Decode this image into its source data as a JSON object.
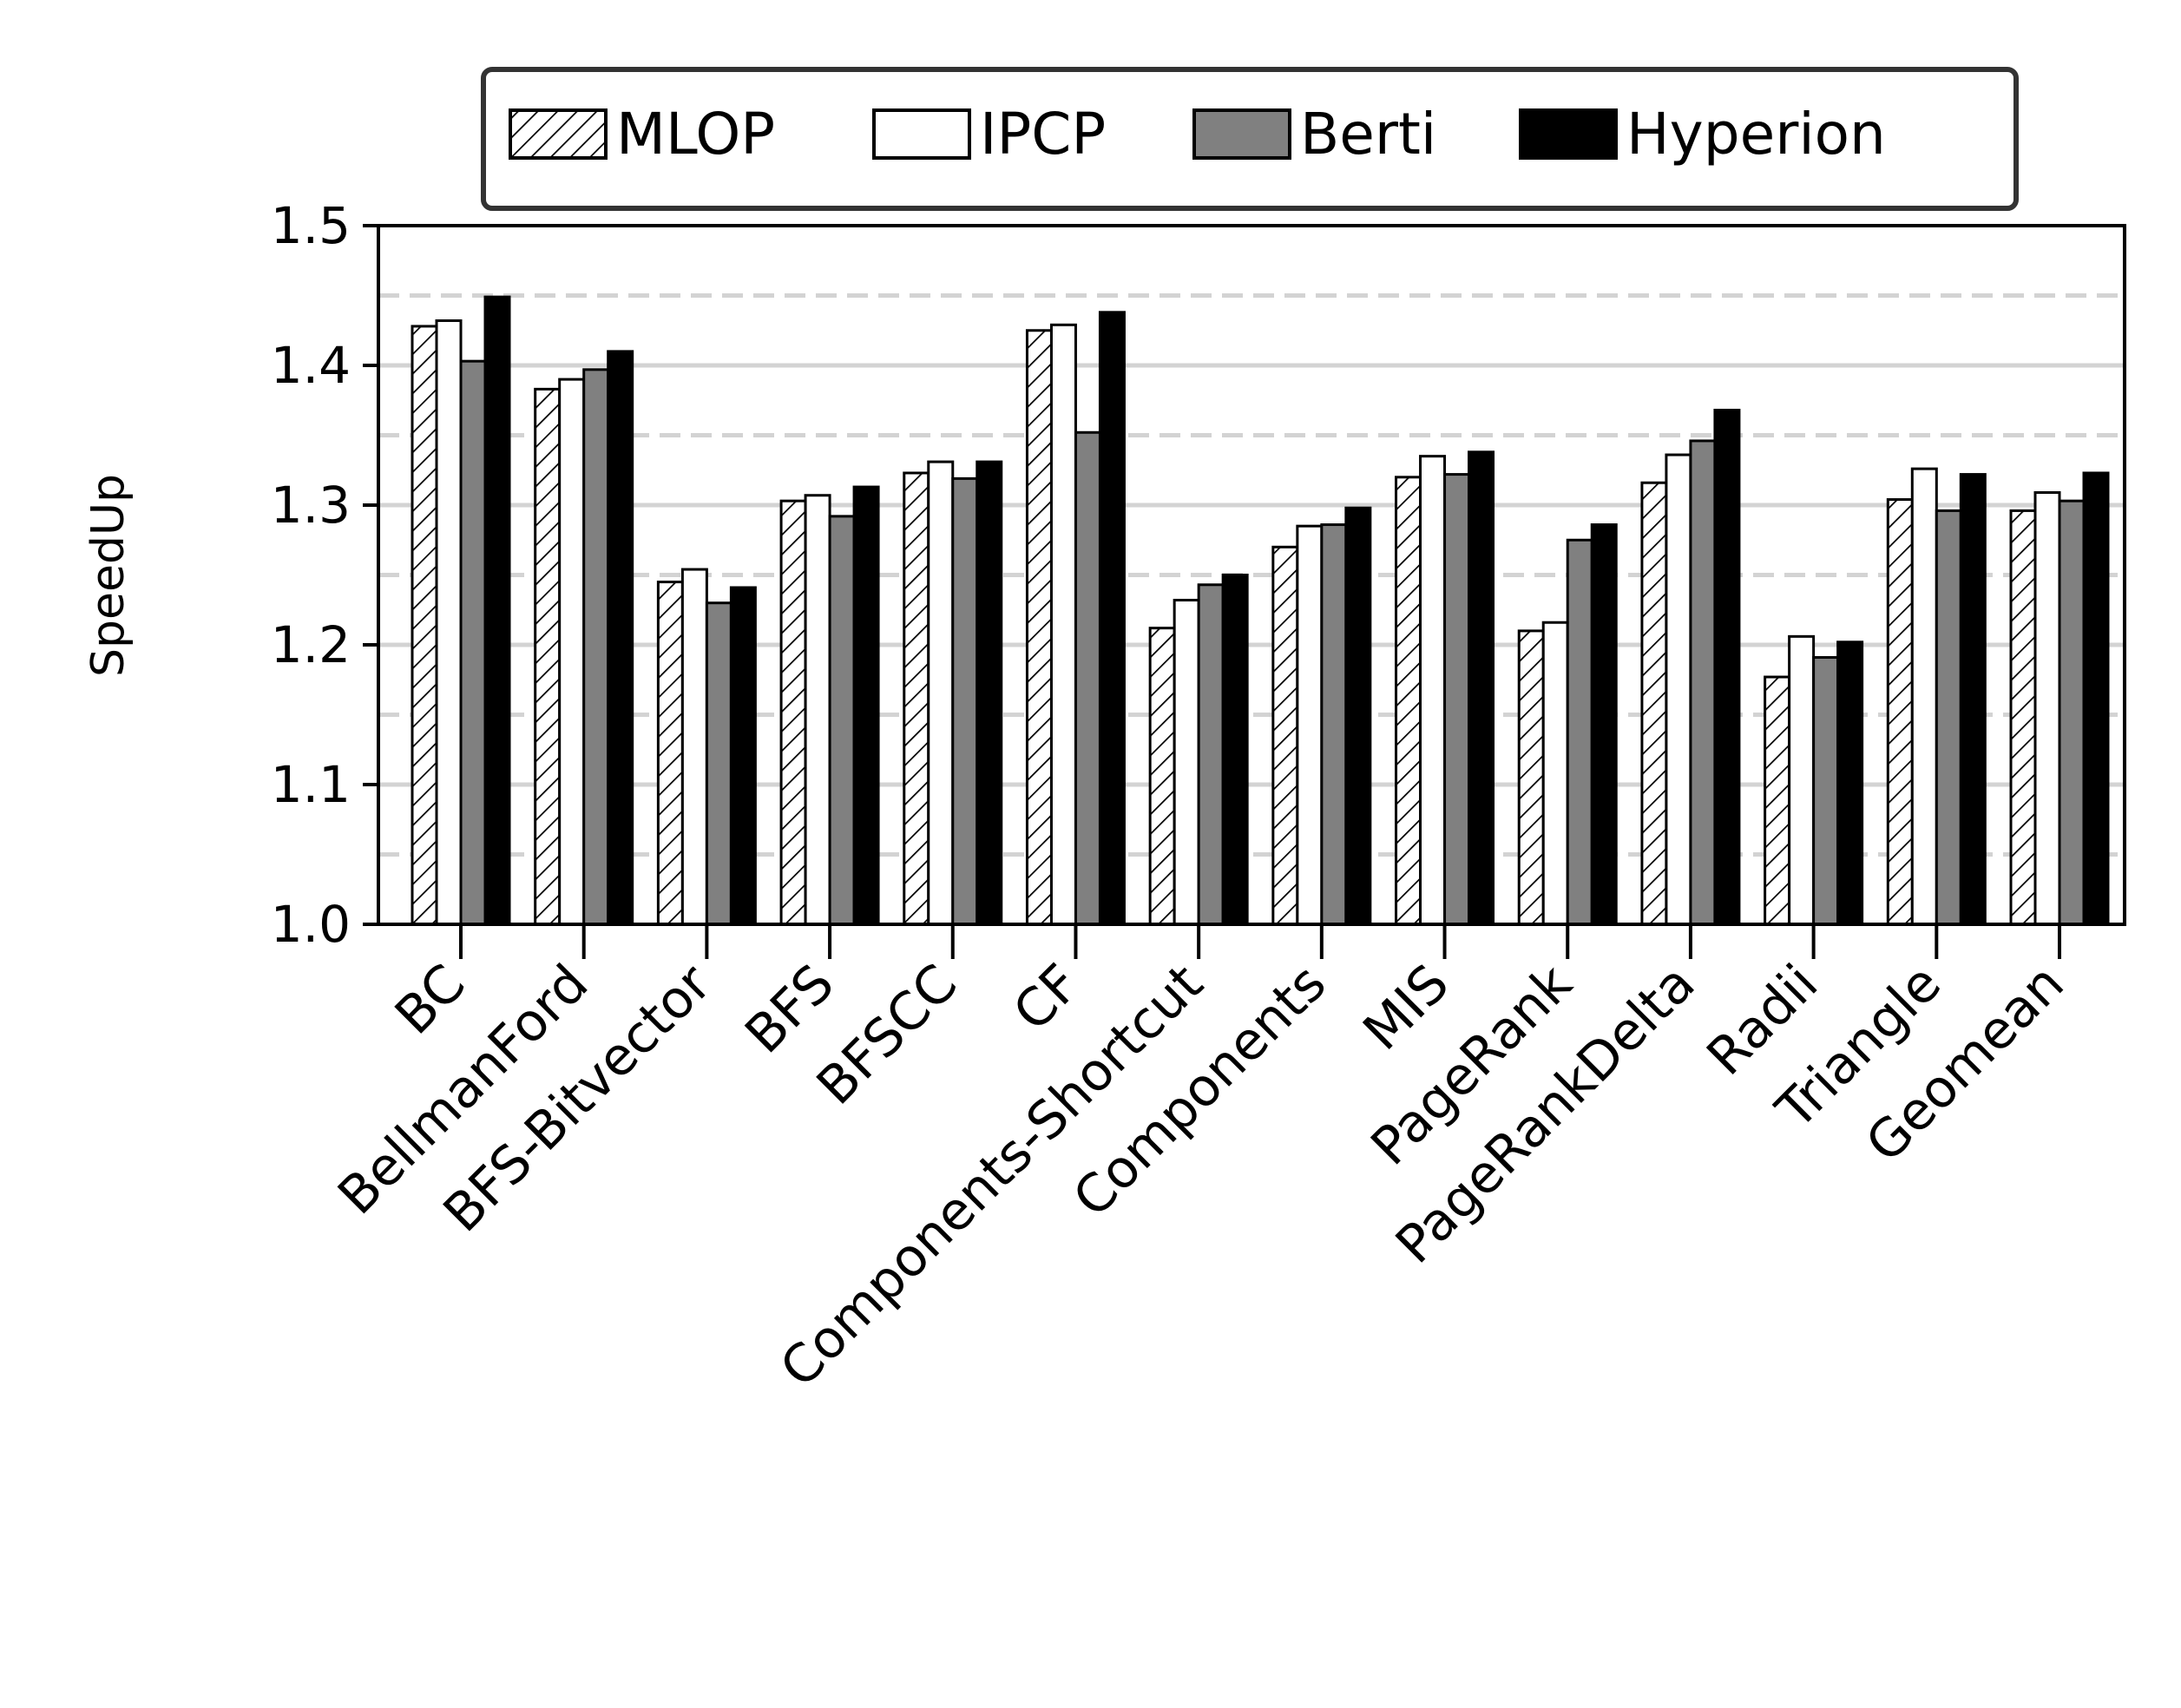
{
  "chart_data": {
    "type": "bar",
    "title": "",
    "xlabel": "",
    "ylabel": "SpeedUp",
    "ylim": [
      1.0,
      1.5
    ],
    "yticks": [
      "1.0",
      "1.1",
      "1.2",
      "1.3",
      "1.4",
      "1.5"
    ],
    "grid": "horizontal: solid at 0.1 steps, dashed at 0.05 midpoints",
    "legend_placement": "top-center",
    "categories": [
      "BC",
      "BellmanFord",
      "BFS-Bitvector",
      "BFS",
      "BFSCC",
      "CF",
      "Components-Shortcut",
      "Components",
      "MIS",
      "PageRank",
      "PageRankDelta",
      "Radii",
      "Triangle",
      "Geomean"
    ],
    "series": [
      {
        "name": "MLOP",
        "style": "hatched",
        "color": "#ffffff",
        "values": [
          1.428,
          1.383,
          1.245,
          1.303,
          1.323,
          1.425,
          1.212,
          1.27,
          1.32,
          1.21,
          1.316,
          1.177,
          1.304,
          1.296
        ]
      },
      {
        "name": "IPCP",
        "style": "solid",
        "color": "#ffffff",
        "values": [
          1.432,
          1.39,
          1.254,
          1.307,
          1.331,
          1.429,
          1.232,
          1.285,
          1.335,
          1.216,
          1.336,
          1.206,
          1.326,
          1.309
        ]
      },
      {
        "name": "Berti",
        "style": "solid",
        "color": "#808080",
        "values": [
          1.403,
          1.397,
          1.23,
          1.292,
          1.319,
          1.352,
          1.243,
          1.286,
          1.322,
          1.275,
          1.346,
          1.191,
          1.296,
          1.303
        ]
      },
      {
        "name": "Hyperion",
        "style": "solid",
        "color": "#000000",
        "values": [
          1.449,
          1.41,
          1.241,
          1.313,
          1.331,
          1.438,
          1.25,
          1.298,
          1.338,
          1.286,
          1.368,
          1.202,
          1.322,
          1.323
        ]
      }
    ]
  }
}
